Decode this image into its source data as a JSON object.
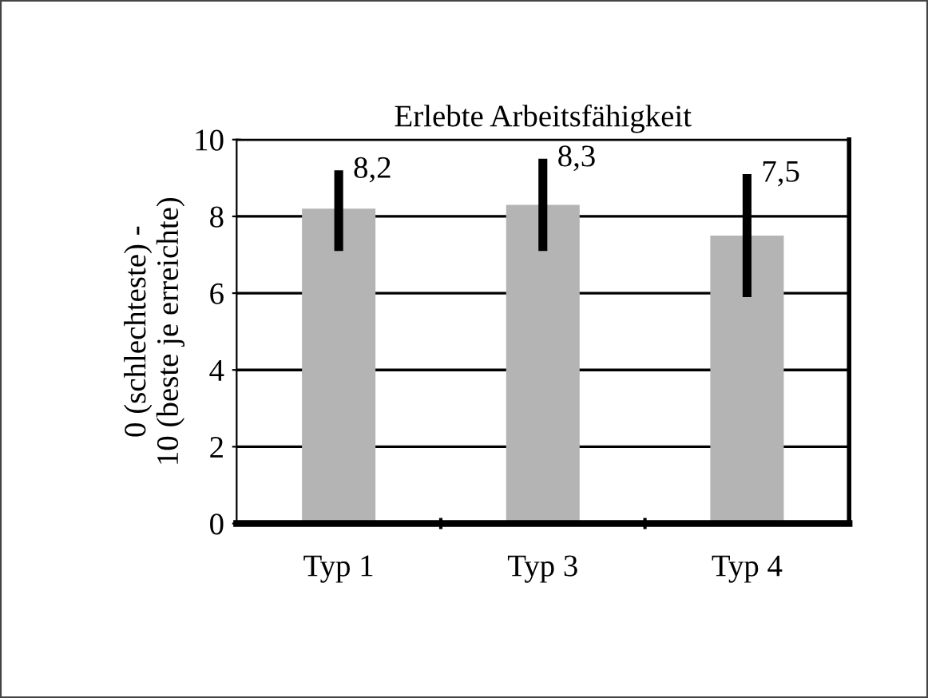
{
  "chart_data": {
    "type": "bar",
    "title": "Erlebte Arbeitsfähigkeit",
    "ylabel": "0 (schlechteste) -\n10 (beste je erreichte)",
    "categories": [
      "Typ 1",
      "Typ 3",
      "Typ 4"
    ],
    "values": [
      8.2,
      8.3,
      7.5
    ],
    "color": "#b4b4b4",
    "errors": [
      [
        7.1,
        9.2
      ],
      [
        7.1,
        9.5
      ],
      [
        5.9,
        9.1
      ]
    ],
    "value_labels": [
      "8,2",
      "8,3",
      "7,5"
    ],
    "ylim": [
      0,
      10
    ],
    "yticks": [
      0,
      2,
      4,
      6,
      8,
      10
    ],
    "grid": "y"
  }
}
